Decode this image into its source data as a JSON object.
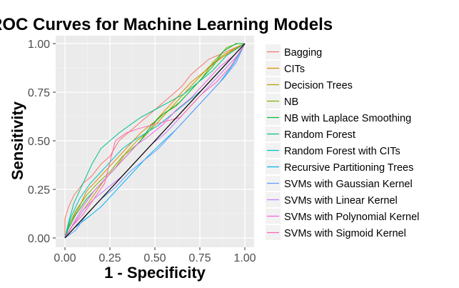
{
  "chart_data": {
    "type": "line",
    "title": "ROC Curves for Machine Learning Models",
    "xlabel": "1 - Specificity",
    "ylabel": "Sensitivity",
    "xlim": [
      0,
      1
    ],
    "ylim": [
      0,
      1
    ],
    "x_ticks": [
      "0.00",
      "0.25",
      "0.50",
      "0.75",
      "1.00"
    ],
    "y_ticks": [
      "0.00",
      "0.25",
      "0.50",
      "0.75",
      "1.00"
    ],
    "grid": true,
    "legend_position": "right",
    "reference_line": {
      "x": [
        0,
        1
      ],
      "y": [
        0,
        1
      ],
      "color": "#000000"
    },
    "series": [
      {
        "name": "Bagging",
        "color": "#F8766D",
        "points": [
          [
            0,
            0
          ],
          [
            0,
            0.1
          ],
          [
            0.02,
            0.16
          ],
          [
            0.05,
            0.22
          ],
          [
            0.1,
            0.28
          ],
          [
            0.15,
            0.32
          ],
          [
            0.2,
            0.38
          ],
          [
            0.25,
            0.42
          ],
          [
            0.3,
            0.5
          ],
          [
            0.35,
            0.54
          ],
          [
            0.4,
            0.58
          ],
          [
            0.45,
            0.62
          ],
          [
            0.5,
            0.66
          ],
          [
            0.55,
            0.7
          ],
          [
            0.6,
            0.74
          ],
          [
            0.65,
            0.78
          ],
          [
            0.7,
            0.84
          ],
          [
            0.75,
            0.88
          ],
          [
            0.8,
            0.92
          ],
          [
            0.9,
            0.96
          ],
          [
            1,
            1
          ]
        ]
      },
      {
        "name": "CITs",
        "color": "#DE8C00",
        "points": [
          [
            0,
            0
          ],
          [
            0.03,
            0.08
          ],
          [
            0.08,
            0.16
          ],
          [
            0.12,
            0.24
          ],
          [
            0.18,
            0.3
          ],
          [
            0.24,
            0.36
          ],
          [
            0.3,
            0.42
          ],
          [
            0.36,
            0.48
          ],
          [
            0.42,
            0.54
          ],
          [
            0.5,
            0.6
          ],
          [
            0.56,
            0.66
          ],
          [
            0.62,
            0.72
          ],
          [
            0.7,
            0.8
          ],
          [
            0.78,
            0.86
          ],
          [
            0.86,
            0.92
          ],
          [
            0.94,
            0.97
          ],
          [
            1,
            1
          ]
        ]
      },
      {
        "name": "Decision Trees",
        "color": "#B79F00",
        "points": [
          [
            0,
            0
          ],
          [
            0.04,
            0.06
          ],
          [
            0.1,
            0.14
          ],
          [
            0.16,
            0.22
          ],
          [
            0.22,
            0.3
          ],
          [
            0.28,
            0.36
          ],
          [
            0.34,
            0.44
          ],
          [
            0.4,
            0.5
          ],
          [
            0.48,
            0.56
          ],
          [
            0.54,
            0.62
          ],
          [
            0.6,
            0.68
          ],
          [
            0.66,
            0.74
          ],
          [
            0.72,
            0.8
          ],
          [
            0.8,
            0.88
          ],
          [
            0.88,
            0.94
          ],
          [
            0.95,
            0.98
          ],
          [
            1,
            1
          ]
        ]
      },
      {
        "name": "NB",
        "color": "#7CAE00",
        "points": [
          [
            0,
            0
          ],
          [
            0.02,
            0.06
          ],
          [
            0.06,
            0.14
          ],
          [
            0.12,
            0.22
          ],
          [
            0.18,
            0.28
          ],
          [
            0.25,
            0.34
          ],
          [
            0.32,
            0.42
          ],
          [
            0.4,
            0.48
          ],
          [
            0.46,
            0.54
          ],
          [
            0.52,
            0.62
          ],
          [
            0.58,
            0.66
          ],
          [
            0.64,
            0.7
          ],
          [
            0.7,
            0.76
          ],
          [
            0.76,
            0.82
          ],
          [
            0.82,
            0.9
          ],
          [
            0.9,
            0.98
          ],
          [
            0.96,
            1
          ],
          [
            1,
            1
          ]
        ]
      },
      {
        "name": "NB with Laplace Smoothing",
        "color": "#00BA38",
        "points": [
          [
            0,
            0
          ],
          [
            0.02,
            0.05
          ],
          [
            0.06,
            0.12
          ],
          [
            0.12,
            0.2
          ],
          [
            0.18,
            0.26
          ],
          [
            0.24,
            0.32
          ],
          [
            0.3,
            0.38
          ],
          [
            0.36,
            0.44
          ],
          [
            0.42,
            0.5
          ],
          [
            0.48,
            0.58
          ],
          [
            0.55,
            0.64
          ],
          [
            0.62,
            0.68
          ],
          [
            0.68,
            0.74
          ],
          [
            0.74,
            0.8
          ],
          [
            0.82,
            0.88
          ],
          [
            0.88,
            0.96
          ],
          [
            0.95,
            1
          ],
          [
            1,
            1
          ]
        ]
      },
      {
        "name": "Random Forest",
        "color": "#00C08B",
        "points": [
          [
            0,
            0
          ],
          [
            0.02,
            0.08
          ],
          [
            0.05,
            0.18
          ],
          [
            0.1,
            0.28
          ],
          [
            0.15,
            0.38
          ],
          [
            0.2,
            0.46
          ],
          [
            0.25,
            0.5
          ],
          [
            0.3,
            0.54
          ],
          [
            0.36,
            0.58
          ],
          [
            0.42,
            0.62
          ],
          [
            0.5,
            0.66
          ],
          [
            0.58,
            0.7
          ],
          [
            0.66,
            0.74
          ],
          [
            0.74,
            0.8
          ],
          [
            0.82,
            0.86
          ],
          [
            0.9,
            0.94
          ],
          [
            1,
            1
          ]
        ]
      },
      {
        "name": "Random Forest with CITs",
        "color": "#00BFC4",
        "points": [
          [
            0,
            0
          ],
          [
            0.03,
            0.1
          ],
          [
            0.08,
            0.2
          ],
          [
            0.14,
            0.28
          ],
          [
            0.2,
            0.34
          ],
          [
            0.26,
            0.4
          ],
          [
            0.32,
            0.46
          ],
          [
            0.38,
            0.5
          ],
          [
            0.45,
            0.54
          ],
          [
            0.52,
            0.58
          ],
          [
            0.6,
            0.64
          ],
          [
            0.68,
            0.7
          ],
          [
            0.76,
            0.76
          ],
          [
            0.84,
            0.84
          ],
          [
            0.92,
            0.92
          ],
          [
            1,
            1
          ]
        ]
      },
      {
        "name": "Recursive Partitioning Trees",
        "color": "#00B4F0",
        "points": [
          [
            0,
            0
          ],
          [
            0.05,
            0.05
          ],
          [
            0.12,
            0.1
          ],
          [
            0.2,
            0.16
          ],
          [
            0.3,
            0.26
          ],
          [
            0.38,
            0.34
          ],
          [
            0.46,
            0.42
          ],
          [
            0.55,
            0.5
          ],
          [
            0.62,
            0.56
          ],
          [
            0.7,
            0.64
          ],
          [
            0.78,
            0.72
          ],
          [
            0.86,
            0.8
          ],
          [
            0.94,
            0.9
          ],
          [
            1,
            1
          ]
        ]
      },
      {
        "name": "SVMs with Gaussian Kernel",
        "color": "#619CFF",
        "points": [
          [
            0,
            0
          ],
          [
            0.06,
            0.04
          ],
          [
            0.12,
            0.12
          ],
          [
            0.2,
            0.2
          ],
          [
            0.28,
            0.26
          ],
          [
            0.36,
            0.34
          ],
          [
            0.44,
            0.4
          ],
          [
            0.52,
            0.46
          ],
          [
            0.6,
            0.54
          ],
          [
            0.66,
            0.6
          ],
          [
            0.72,
            0.66
          ],
          [
            0.8,
            0.74
          ],
          [
            0.88,
            0.82
          ],
          [
            0.95,
            0.9
          ],
          [
            1,
            1
          ]
        ]
      },
      {
        "name": "SVMs with Linear Kernel",
        "color": "#C77CFF",
        "points": [
          [
            0,
            0
          ],
          [
            0.04,
            0.06
          ],
          [
            0.1,
            0.14
          ],
          [
            0.16,
            0.2
          ],
          [
            0.24,
            0.26
          ],
          [
            0.32,
            0.32
          ],
          [
            0.4,
            0.4
          ],
          [
            0.48,
            0.48
          ],
          [
            0.56,
            0.54
          ],
          [
            0.64,
            0.62
          ],
          [
            0.72,
            0.7
          ],
          [
            0.8,
            0.78
          ],
          [
            0.88,
            0.86
          ],
          [
            0.96,
            0.94
          ],
          [
            1,
            1
          ]
        ]
      },
      {
        "name": "SVMs with Polynomial Kernel",
        "color": "#F564E3",
        "points": [
          [
            0,
            0
          ],
          [
            0.05,
            0.08
          ],
          [
            0.1,
            0.16
          ],
          [
            0.16,
            0.24
          ],
          [
            0.22,
            0.3
          ],
          [
            0.28,
            0.36
          ],
          [
            0.34,
            0.42
          ],
          [
            0.4,
            0.48
          ],
          [
            0.46,
            0.52
          ],
          [
            0.54,
            0.58
          ],
          [
            0.62,
            0.66
          ],
          [
            0.7,
            0.72
          ],
          [
            0.78,
            0.8
          ],
          [
            0.86,
            0.88
          ],
          [
            0.94,
            0.94
          ],
          [
            1,
            1
          ]
        ]
      },
      {
        "name": "SVMs with Sigmoid Kernel",
        "color": "#FF64B0",
        "points": [
          [
            0,
            0
          ],
          [
            0.04,
            0.06
          ],
          [
            0.1,
            0.12
          ],
          [
            0.16,
            0.2
          ],
          [
            0.22,
            0.28
          ],
          [
            0.28,
            0.5
          ],
          [
            0.34,
            0.54
          ],
          [
            0.4,
            0.56
          ],
          [
            0.48,
            0.58
          ],
          [
            0.56,
            0.6
          ],
          [
            0.64,
            0.62
          ],
          [
            0.7,
            0.68
          ],
          [
            0.76,
            0.74
          ],
          [
            0.84,
            0.8
          ],
          [
            0.92,
            0.88
          ],
          [
            1,
            1
          ]
        ]
      }
    ]
  }
}
